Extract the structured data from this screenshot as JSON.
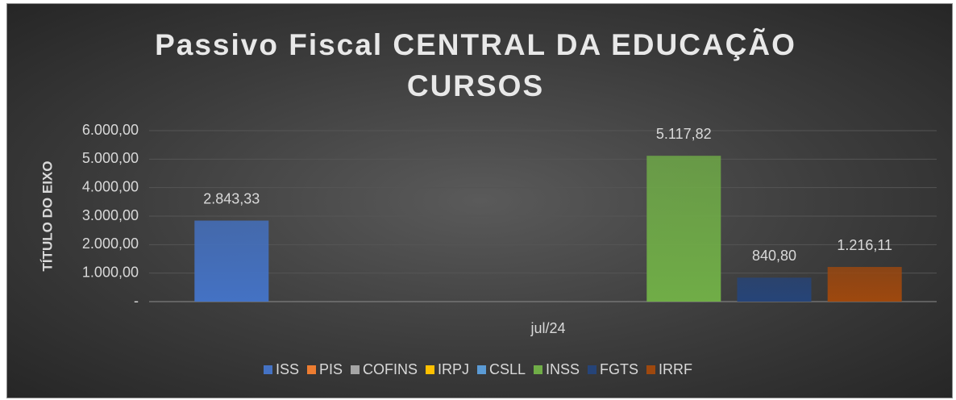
{
  "chart_data": {
    "type": "bar",
    "title": "Passivo Fiscal CENTRAL DA EDUCAÇÃO CURSOS",
    "y_label": "TÍTULO DO EIXO",
    "categories": [
      "jul/24"
    ],
    "series": [
      {
        "name": "ISS",
        "color": "#4472c4",
        "values": [
          2843.33
        ],
        "value_labels": [
          "2.843,33"
        ]
      },
      {
        "name": "PIS",
        "color": "#ed7d31",
        "values": [
          null
        ],
        "value_labels": [
          null
        ]
      },
      {
        "name": "COFINS",
        "color": "#a5a5a5",
        "values": [
          null
        ],
        "value_labels": [
          null
        ]
      },
      {
        "name": "IRPJ",
        "color": "#ffc000",
        "values": [
          null
        ],
        "value_labels": [
          null
        ]
      },
      {
        "name": "CSLL",
        "color": "#5b9bd5",
        "values": [
          null
        ],
        "value_labels": [
          null
        ]
      },
      {
        "name": "INSS",
        "color": "#70ad47",
        "values": [
          5117.82
        ],
        "value_labels": [
          "5.117,82"
        ]
      },
      {
        "name": "FGTS",
        "color": "#264478",
        "values": [
          840.8
        ],
        "value_labels": [
          "840,80"
        ]
      },
      {
        "name": "IRRF",
        "color": "#9e480e",
        "values": [
          1216.11
        ],
        "value_labels": [
          "1.216,11"
        ]
      }
    ],
    "ylim": [
      0,
      6000
    ],
    "yticks": [
      {
        "value": 0,
        "label": "-"
      },
      {
        "value": 1000,
        "label": "1.000,00"
      },
      {
        "value": 2000,
        "label": "2.000,00"
      },
      {
        "value": 3000,
        "label": "3.000,00"
      },
      {
        "value": 4000,
        "label": "4.000,00"
      },
      {
        "value": 5000,
        "label": "5.000,00"
      },
      {
        "value": 6000,
        "label": "6.000,00"
      }
    ],
    "grid": true,
    "legend": "bottom"
  }
}
